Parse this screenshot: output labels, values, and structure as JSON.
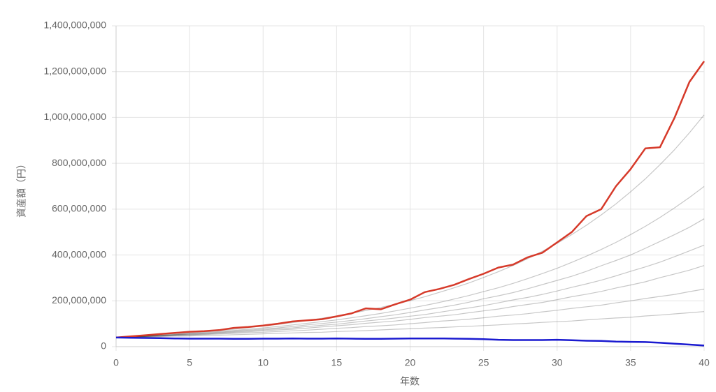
{
  "chart_data": {
    "type": "line",
    "x_label": "年数",
    "y_label": "資産額（円）",
    "x": [
      0,
      1,
      2,
      3,
      4,
      5,
      6,
      7,
      8,
      9,
      10,
      11,
      12,
      13,
      14,
      15,
      16,
      17,
      18,
      19,
      20,
      21,
      22,
      23,
      24,
      25,
      26,
      27,
      28,
      29,
      30,
      31,
      32,
      33,
      34,
      35,
      36,
      37,
      38,
      39,
      40
    ],
    "xlim": [
      0,
      40
    ],
    "xticks": [
      0,
      5,
      10,
      15,
      20,
      25,
      30,
      35,
      40
    ],
    "ylim": [
      0,
      1400000000
    ],
    "yticks": [
      0,
      {
        "value": 200000000,
        "label": "200,000,000"
      },
      {
        "value": 400000000,
        "label": "400,000,000"
      },
      {
        "value": 600000000,
        "label": "600,000,000"
      },
      {
        "value": 800000000,
        "label": "800,000,000"
      },
      {
        "value": 1000000000,
        "label": "1,000,000,000"
      },
      {
        "value": 1200000000,
        "label": "1,200,000,000"
      },
      {
        "value": 1400000000,
        "label": "1,400,000,000"
      }
    ],
    "grid": true,
    "series": [
      {
        "color": "rgba(0,0,0,0.22)",
        "values": [
          40000000,
          41000000,
          43000000,
          44000000,
          46000000,
          47000000,
          49000000,
          50000000,
          52000000,
          54000000,
          56000000,
          58000000,
          60000000,
          62000000,
          63000000,
          66000000,
          68000000,
          70000000,
          73000000,
          76000000,
          78000000,
          81000000,
          83000000,
          86000000,
          89000000,
          92000000,
          95000000,
          99000000,
          102000000,
          106000000,
          109000000,
          112000000,
          117000000,
          121000000,
          125000000,
          128000000,
          134000000,
          138000000,
          143000000,
          148000000,
          153000000
        ]
      },
      {
        "color": "rgba(0,0,0,0.22)",
        "values": [
          40000000,
          42000000,
          44000000,
          46000000,
          48000000,
          50000000,
          53000000,
          55000000,
          58000000,
          61000000,
          63000000,
          66000000,
          69000000,
          72000000,
          76000000,
          80000000,
          83000000,
          88000000,
          91000000,
          95000000,
          100000000,
          105000000,
          111000000,
          115000000,
          120000000,
          126000000,
          133000000,
          138000000,
          144000000,
          152000000,
          159000000,
          167000000,
          174000000,
          181000000,
          191000000,
          200000000,
          210000000,
          219000000,
          228000000,
          240000000,
          251000000
        ]
      },
      {
        "color": "rgba(0,0,0,0.22)",
        "values": [
          40000000,
          42000000,
          45000000,
          47000000,
          50000000,
          52000000,
          55000000,
          58000000,
          62000000,
          65000000,
          69000000,
          73000000,
          76000000,
          81000000,
          86000000,
          91000000,
          96000000,
          102000000,
          107000000,
          112000000,
          119000000,
          127000000,
          133000000,
          139000000,
          148000000,
          156000000,
          164000000,
          175000000,
          184000000,
          193000000,
          205000000,
          218000000,
          229000000,
          241000000,
          256000000,
          269000000,
          283000000,
          301000000,
          317000000,
          334000000,
          354000000
        ]
      },
      {
        "color": "rgba(0,0,0,0.22)",
        "values": [
          40000000,
          42000000,
          45000000,
          48000000,
          51000000,
          54000000,
          57000000,
          61000000,
          65000000,
          69000000,
          73000000,
          78000000,
          82000000,
          88000000,
          93000000,
          98000000,
          105000000,
          112000000,
          118000000,
          125000000,
          133000000,
          140000000,
          150000000,
          160000000,
          169000000,
          179000000,
          191000000,
          204000000,
          215000000,
          228000000,
          243000000,
          259000000,
          274000000,
          290000000,
          309000000,
          329000000,
          348000000,
          369000000,
          393000000,
          418000000,
          443000000
        ]
      },
      {
        "color": "rgba(0,0,0,0.22)",
        "values": [
          40000000,
          43000000,
          46000000,
          49000000,
          52000000,
          56000000,
          59000000,
          63000000,
          68000000,
          72000000,
          77000000,
          82000000,
          88000000,
          95000000,
          101000000,
          107000000,
          114000000,
          122000000,
          131000000,
          139000000,
          149000000,
          160000000,
          170000000,
          181000000,
          194000000,
          209000000,
          222000000,
          236000000,
          253000000,
          271000000,
          289000000,
          307000000,
          329000000,
          353000000,
          376000000,
          400000000,
          429000000,
          459000000,
          489000000,
          521000000,
          558000000
        ]
      },
      {
        "color": "rgba(0,0,0,0.22)",
        "values": [
          40000000,
          43000000,
          46000000,
          49000000,
          53000000,
          57000000,
          62000000,
          66000000,
          71000000,
          76000000,
          82000000,
          88000000,
          95000000,
          102000000,
          109000000,
          117000000,
          126000000,
          135000000,
          145000000,
          156000000,
          168000000,
          180000000,
          193000000,
          208000000,
          223000000,
          240000000,
          257000000,
          276000000,
          297000000,
          319000000,
          342000000,
          368000000,
          395000000,
          424000000,
          455000000,
          489000000,
          525000000,
          564000000,
          606000000,
          651000000,
          699000000
        ]
      },
      {
        "color": "rgba(0,0,0,0.22)",
        "values": [
          40000000,
          43000000,
          47000000,
          51000000,
          55000000,
          60000000,
          65000000,
          70000000,
          76000000,
          83000000,
          90000000,
          97000000,
          105000000,
          114000000,
          124000000,
          134000000,
          146000000,
          158000000,
          171000000,
          186000000,
          201000000,
          218000000,
          237000000,
          257000000,
          278000000,
          302000000,
          327000000,
          354000000,
          384000000,
          416000000,
          451000000,
          489000000,
          530000000,
          575000000,
          623000000,
          676000000,
          732000000,
          794000000,
          860000000,
          933000000,
          1011000000
        ]
      },
      {
        "color": "#d63a2a",
        "values": [
          40000000,
          45000000,
          50000000,
          55000000,
          60000000,
          65000000,
          68000000,
          72000000,
          82000000,
          86000000,
          92000000,
          100000000,
          110000000,
          115000000,
          120000000,
          132000000,
          145000000,
          167000000,
          163000000,
          185000000,
          205000000,
          238000000,
          252000000,
          270000000,
          295000000,
          318000000,
          345000000,
          358000000,
          390000000,
          410000000,
          455000000,
          500000000,
          570000000,
          600000000,
          700000000,
          775000000,
          865000000,
          870000000,
          1000000000,
          1155000000,
          1245000000
        ]
      },
      {
        "color": "#1a1ad0",
        "values": [
          40000000,
          39000000,
          38000000,
          37000000,
          36000000,
          35000000,
          35000000,
          35000000,
          34000000,
          34000000,
          35000000,
          35000000,
          36000000,
          35000000,
          35000000,
          36000000,
          35000000,
          34000000,
          34000000,
          35000000,
          36000000,
          36000000,
          36000000,
          35000000,
          34000000,
          33000000,
          30000000,
          29000000,
          29000000,
          29000000,
          30000000,
          28000000,
          26000000,
          25000000,
          22000000,
          21000000,
          20000000,
          17000000,
          13000000,
          9000000,
          5000000
        ]
      }
    ]
  }
}
